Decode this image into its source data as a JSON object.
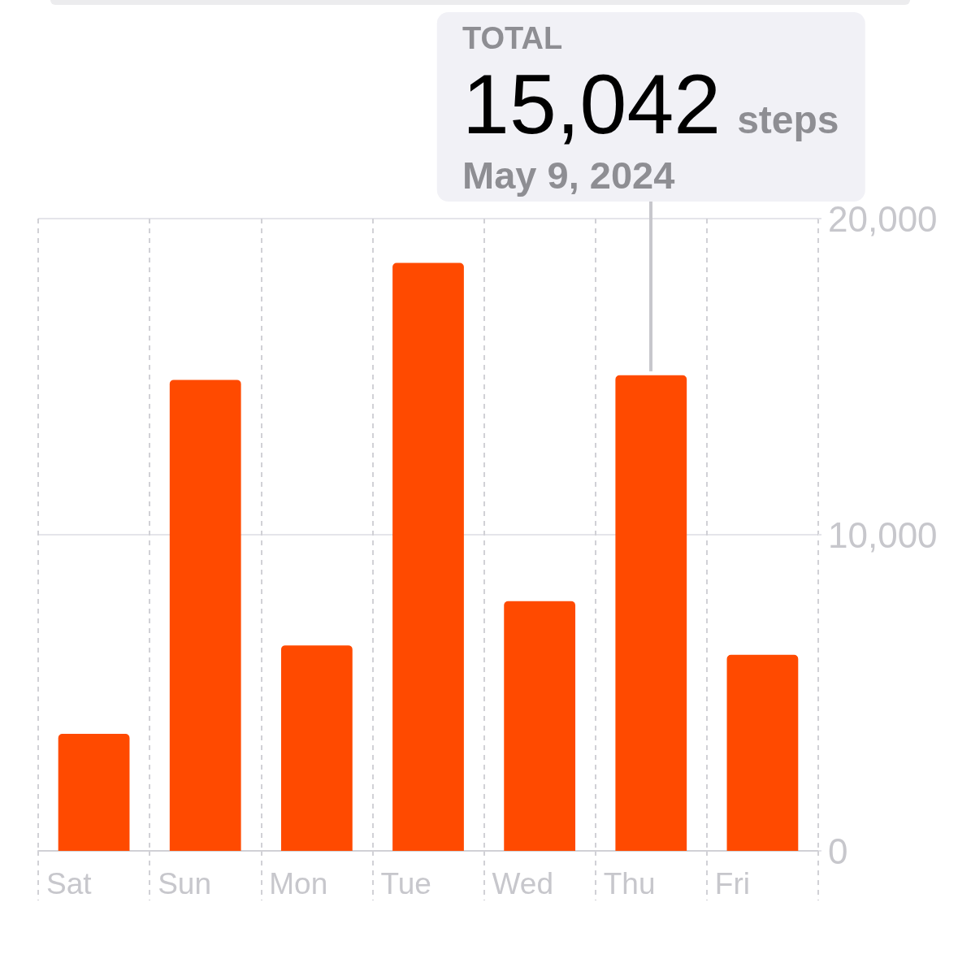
{
  "chart_data": {
    "type": "bar",
    "categories": [
      "Sat",
      "Sun",
      "Mon",
      "Tue",
      "Wed",
      "Thu",
      "Fri"
    ],
    "values": [
      3700,
      14900,
      6500,
      18600,
      7900,
      15042,
      6200
    ],
    "value_labels": [
      null,
      null,
      null,
      null,
      null,
      "15,042",
      null
    ],
    "color": "#ff4a00",
    "ylim": [
      0,
      20000
    ],
    "yticks": [
      0,
      {
        "value": 10000,
        "label": "10,000"
      },
      {
        "value": 20000,
        "label": "20,000"
      }
    ],
    "grid": true,
    "annotations": [
      "TOTAL",
      "steps",
      "May 9, 2024"
    ]
  }
}
